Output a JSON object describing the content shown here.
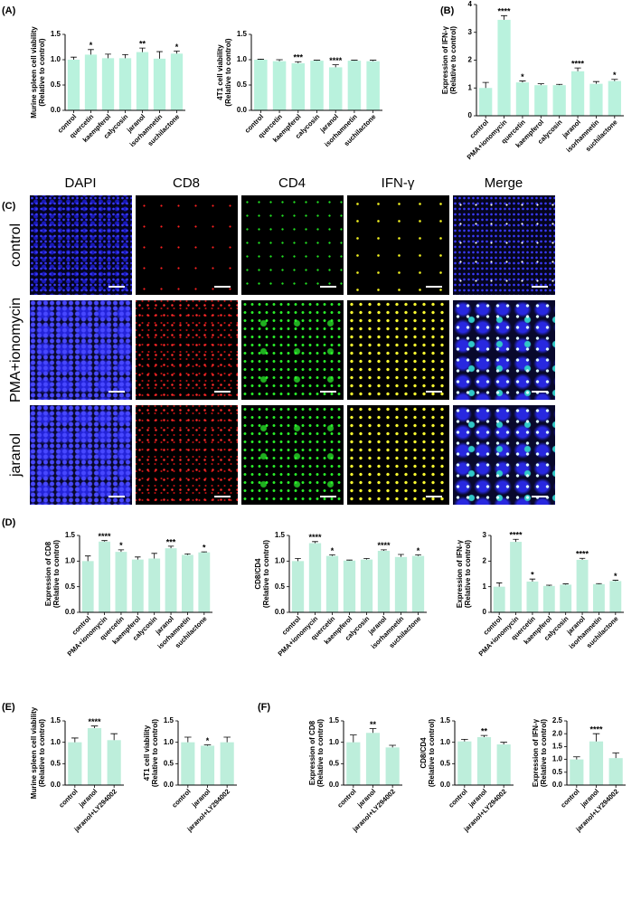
{
  "panel_labels": [
    "(A)",
    "(B)",
    "(C)",
    "(D)",
    "(E)",
    "(F)"
  ],
  "image_panel": {
    "columns": [
      "DAPI",
      "CD8",
      "CD4",
      "IFN-γ",
      "Merge"
    ],
    "column_colors": [
      "#2323e6",
      "#e82020",
      "#22c922",
      "#d8d820",
      "#111111"
    ],
    "rows": [
      "control",
      "PMA+ionomycin",
      "jaranol"
    ]
  },
  "chart_data": [
    {
      "type": "bar",
      "ylabel": [
        "Murine spleen cell viability",
        "(Relative to control)"
      ],
      "color": "#b9f2dd",
      "categories": [
        "control",
        "quercetin",
        "kaempferol",
        "calycosin",
        "jaranol",
        "isorhamnetin",
        "suchilactone"
      ],
      "values": [
        1.0,
        1.1,
        1.03,
        1.03,
        1.15,
        1.02,
        1.12
      ],
      "errors": [
        0.05,
        0.1,
        0.08,
        0.07,
        0.08,
        0.14,
        0.05
      ],
      "significance": [
        null,
        "*",
        null,
        null,
        "**",
        null,
        "*"
      ],
      "ylim": [
        0,
        1.5
      ],
      "yticks": [
        {
          "value": 0,
          "label": "0.0"
        },
        {
          "value": 0.5,
          "label": "0.5"
        },
        {
          "value": 1,
          "label": "1.0"
        },
        {
          "value": 1.5,
          "label": "1.5"
        }
      ]
    },
    {
      "type": "bar",
      "ylabel": [
        "4T1 cell viability",
        "(Relative to control)"
      ],
      "color": "#b9f2dd",
      "categories": [
        "control",
        "quercetin",
        "kaempferol",
        "calycosin",
        "jaranol",
        "isorhamnetin",
        "suchilactone"
      ],
      "values": [
        1.0,
        0.97,
        0.93,
        0.98,
        0.85,
        0.98,
        0.97
      ],
      "errors": [
        0.01,
        0.03,
        0.03,
        0.01,
        0.05,
        0.01,
        0.02
      ],
      "significance": [
        null,
        null,
        "***",
        null,
        "****",
        null,
        null
      ],
      "ylim": [
        0,
        1.5
      ],
      "yticks": [
        {
          "value": 0,
          "label": "0.0"
        },
        {
          "value": 0.5,
          "label": "0.5"
        },
        {
          "value": 1,
          "label": "1.0"
        },
        {
          "value": 1.5,
          "label": "1.5"
        }
      ]
    },
    {
      "type": "bar",
      "ylabel": [
        "Expression of IFN-γ",
        "(Relative to control)"
      ],
      "color": "#b9f2dd",
      "categories": [
        "control",
        "PMA+ionomycin",
        "quercetin",
        "kaempferol",
        "calycosin",
        "jaranol",
        "isorhamnetin",
        "suchilactone"
      ],
      "values": [
        1.0,
        3.45,
        1.2,
        1.1,
        1.1,
        1.6,
        1.15,
        1.25
      ],
      "errors": [
        0.2,
        0.15,
        0.05,
        0.05,
        0.03,
        0.12,
        0.08,
        0.06
      ],
      "significance": [
        null,
        "****",
        "*",
        null,
        null,
        "****",
        null,
        "*"
      ],
      "ylim": [
        0,
        4
      ],
      "yticks": [
        0,
        1,
        2,
        3,
        4
      ]
    },
    {
      "type": "bar",
      "ylabel": [
        "Expression of CD8",
        "(Relative to control)"
      ],
      "color": "#bdeedb",
      "categories": [
        "control",
        "PMA+ionomycin",
        "quercetin",
        "kaempferol",
        "calycosin",
        "jaranol",
        "isorhamnetin",
        "suchilactone"
      ],
      "values": [
        1.0,
        1.38,
        1.18,
        1.03,
        1.05,
        1.25,
        1.12,
        1.17
      ],
      "errors": [
        0.1,
        0.02,
        0.04,
        0.05,
        0.1,
        0.04,
        0.02,
        0.01
      ],
      "significance": [
        null,
        "****",
        "*",
        null,
        null,
        "***",
        null,
        "*"
      ],
      "ylim": [
        0,
        1.5
      ],
      "yticks": [
        {
          "value": 0,
          "label": "0.0"
        },
        {
          "value": 0.5,
          "label": "0.5"
        },
        {
          "value": 1,
          "label": "1.0"
        },
        {
          "value": 1.5,
          "label": "1.5"
        }
      ]
    },
    {
      "type": "bar",
      "ylabel": [
        "CD8/CD4",
        "(Relative to control)"
      ],
      "color": "#bdeedb",
      "categories": [
        "control",
        "PMA+ionomycin",
        "quercetin",
        "kaempferol",
        "calycosin",
        "jaranol",
        "isorhamnetin",
        "suchilactone"
      ],
      "values": [
        1.0,
        1.35,
        1.1,
        1.01,
        1.03,
        1.2,
        1.08,
        1.1
      ],
      "errors": [
        0.05,
        0.03,
        0.02,
        0.01,
        0.02,
        0.02,
        0.05,
        0.02
      ],
      "significance": [
        null,
        "****",
        "*",
        null,
        null,
        "****",
        null,
        "*"
      ],
      "ylim": [
        0,
        1.5
      ],
      "yticks": [
        {
          "value": 0,
          "label": "0.0"
        },
        {
          "value": 0.5,
          "label": "0.5"
        },
        {
          "value": 1,
          "label": "1.0"
        },
        {
          "value": 1.5,
          "label": "1.5"
        }
      ]
    },
    {
      "type": "bar",
      "ylabel": [
        "Expression of IFN-γ",
        "(Relative to control)"
      ],
      "color": "#bdeedb",
      "categories": [
        "control",
        "PMA+ionomycin",
        "quercetin",
        "kaempferol",
        "calycosin",
        "jaranol",
        "isorhamnetin",
        "suchilactone"
      ],
      "values": [
        1.0,
        2.75,
        1.2,
        1.03,
        1.08,
        2.05,
        1.1,
        1.22
      ],
      "errors": [
        0.15,
        0.1,
        0.1,
        0.03,
        0.03,
        0.06,
        0.02,
        0.03
      ],
      "significance": [
        null,
        "****",
        "*",
        null,
        null,
        "****",
        null,
        "*"
      ],
      "ylim": [
        0,
        3
      ],
      "yticks": [
        0,
        1,
        2,
        3
      ]
    },
    {
      "type": "bar",
      "ylabel": [
        "Murine spleen cell viability",
        "(Relative to control)"
      ],
      "color": "#bdeedb",
      "categories": [
        "control",
        "jaranol",
        "jaranol+LY294002"
      ],
      "values": [
        1.0,
        1.33,
        1.05
      ],
      "errors": [
        0.1,
        0.05,
        0.15
      ],
      "significance": [
        null,
        "****",
        null
      ],
      "ylim": [
        0,
        1.5
      ],
      "yticks": [
        {
          "value": 0,
          "label": "0.0"
        },
        {
          "value": 0.5,
          "label": "0.5"
        },
        {
          "value": 1,
          "label": "1.0"
        },
        {
          "value": 1.5,
          "label": "1.5"
        }
      ]
    },
    {
      "type": "bar",
      "ylabel": [
        "4T1 cell viability",
        "(Relative to control)"
      ],
      "color": "#bdeedb",
      "categories": [
        "control",
        "jaranol",
        "jaranol+LY294002"
      ],
      "values": [
        1.0,
        0.92,
        1.0
      ],
      "errors": [
        0.12,
        0.02,
        0.12
      ],
      "significance": [
        null,
        "*",
        null
      ],
      "ylim": [
        0,
        1.5
      ],
      "yticks": [
        {
          "value": 0,
          "label": "0.0"
        },
        {
          "value": 0.5,
          "label": "0.5"
        },
        {
          "value": 1,
          "label": "1.0"
        },
        {
          "value": 1.5,
          "label": "1.5"
        }
      ]
    },
    {
      "type": "bar",
      "ylabel": [
        "Expression of CD8",
        "(Relative to control)"
      ],
      "color": "#bdeedb",
      "categories": [
        "control",
        "jaranol",
        "jaranol+LY294002"
      ],
      "values": [
        1.0,
        1.22,
        0.88
      ],
      "errors": [
        0.17,
        0.1,
        0.05
      ],
      "significance": [
        null,
        "**",
        null
      ],
      "ylim": [
        0,
        1.5
      ],
      "yticks": [
        {
          "value": 0,
          "label": "0.0"
        },
        {
          "value": 0.5,
          "label": "0.5"
        },
        {
          "value": 1,
          "label": "1.0"
        },
        {
          "value": 1.5,
          "label": "1.5"
        }
      ]
    },
    {
      "type": "bar",
      "ylabel": [
        "CD8/CD4",
        "(Relative to control)"
      ],
      "color": "#bdeedb",
      "categories": [
        "control",
        "jaranol",
        "jaranol+LY294002"
      ],
      "values": [
        1.02,
        1.12,
        0.95
      ],
      "errors": [
        0.05,
        0.04,
        0.05
      ],
      "significance": [
        null,
        "**",
        null
      ],
      "ylim": [
        0,
        1.5
      ],
      "yticks": [
        {
          "value": 0,
          "label": "0.0"
        },
        {
          "value": 0.5,
          "label": "0.5"
        },
        {
          "value": 1,
          "label": "1.0"
        },
        {
          "value": 1.5,
          "label": "1.5"
        }
      ]
    },
    {
      "type": "bar",
      "ylabel": [
        "Expression of IFN-γ",
        "(Relative to control)"
      ],
      "color": "#bdeedb",
      "categories": [
        "control",
        "jaranol",
        "jaranol+LY294002"
      ],
      "values": [
        1.0,
        1.7,
        1.05
      ],
      "errors": [
        0.1,
        0.3,
        0.2
      ],
      "significance": [
        null,
        "****",
        null
      ],
      "ylim": [
        0,
        2.5
      ],
      "yticks": [
        {
          "value": 0,
          "label": "0.0"
        },
        {
          "value": 0.5,
          "label": "0.5"
        },
        {
          "value": 1,
          "label": "1.0"
        },
        {
          "value": 1.5,
          "label": "1.5"
        },
        {
          "value": 2,
          "label": "2.0"
        },
        {
          "value": 2.5,
          "label": "2.5"
        }
      ]
    }
  ]
}
